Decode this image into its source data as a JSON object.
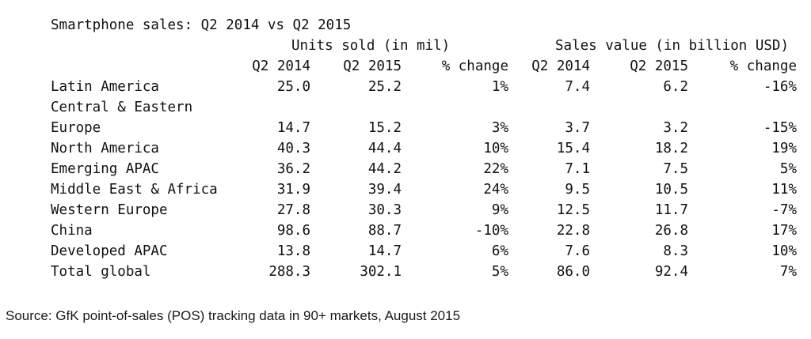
{
  "title": "Smartphone sales: Q2 2014 vs Q2 2015",
  "group_headers": {
    "units": "Units sold (in mil)",
    "sales": "Sales value (in billion USD)"
  },
  "column_headers": {
    "units_q2_2014": "Q2 2014",
    "units_q2_2015": "Q2 2015",
    "units_change": "% change",
    "sales_q2_2014": "Q2 2014",
    "sales_q2_2015": "Q2 2015",
    "sales_change": "% change"
  },
  "rows": [
    {
      "region": "Latin America",
      "units_q2_2014": "25.0",
      "units_q2_2015": "25.2",
      "units_change": "1%",
      "sales_q2_2014": "7.4",
      "sales_q2_2015": "6.2",
      "sales_change": "-16%"
    },
    {
      "region": "Central & Eastern",
      "units_q2_2014": "",
      "units_q2_2015": "",
      "units_change": "",
      "sales_q2_2014": "",
      "sales_q2_2015": "",
      "sales_change": ""
    },
    {
      "region": "Europe",
      "units_q2_2014": "14.7",
      "units_q2_2015": "15.2",
      "units_change": "3%",
      "sales_q2_2014": "3.7",
      "sales_q2_2015": "3.2",
      "sales_change": "-15%"
    },
    {
      "region": "North America",
      "units_q2_2014": "40.3",
      "units_q2_2015": "44.4",
      "units_change": "10%",
      "sales_q2_2014": "15.4",
      "sales_q2_2015": "18.2",
      "sales_change": "19%"
    },
    {
      "region": "Emerging APAC",
      "units_q2_2014": "36.2",
      "units_q2_2015": "44.2",
      "units_change": "22%",
      "sales_q2_2014": "7.1",
      "sales_q2_2015": "7.5",
      "sales_change": "5%"
    },
    {
      "region": "Middle East & Africa",
      "units_q2_2014": "31.9",
      "units_q2_2015": "39.4",
      "units_change": "24%",
      "sales_q2_2014": "9.5",
      "sales_q2_2015": "10.5",
      "sales_change": "11%"
    },
    {
      "region": "Western Europe",
      "units_q2_2014": "27.8",
      "units_q2_2015": "30.3",
      "units_change": "9%",
      "sales_q2_2014": "12.5",
      "sales_q2_2015": "11.7",
      "sales_change": "-7%"
    },
    {
      "region": "China",
      "units_q2_2014": "98.6",
      "units_q2_2015": "88.7",
      "units_change": "-10%",
      "sales_q2_2014": "22.8",
      "sales_q2_2015": "26.8",
      "sales_change": "17%"
    },
    {
      "region": "Developed APAC",
      "units_q2_2014": "13.8",
      "units_q2_2015": "14.7",
      "units_change": "6%",
      "sales_q2_2014": "7.6",
      "sales_q2_2015": "8.3",
      "sales_change": "10%"
    },
    {
      "region": "Total global",
      "units_q2_2014": "288.3",
      "units_q2_2015": "302.1",
      "units_change": "5%",
      "sales_q2_2014": "86.0",
      "sales_q2_2015": "92.4",
      "sales_change": "7%"
    }
  ],
  "source": "Source: GfK point-of-sales (POS) tracking data in 90+ markets, August 2015"
}
